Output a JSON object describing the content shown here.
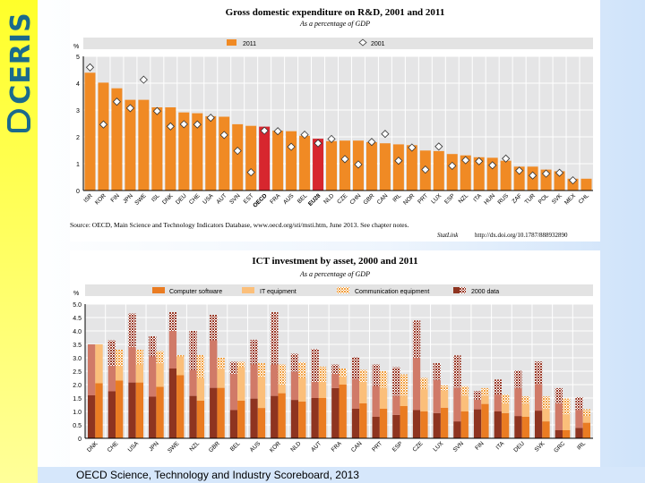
{
  "logo": {
    "text": "CERIS"
  },
  "footer": "OECD Science, Technology and Industry Scoreboard, 2013",
  "colors": {
    "bar_2011": "#f08a24",
    "bar_highlight": "#d7262e",
    "software_2011": "#ea7c22",
    "it_2011": "#fbbf7a",
    "comm_2011": "#f2a040",
    "software_2000": "#8e3420",
    "it_2000": "#d07a68",
    "comm_2000": "#9a3a28",
    "plot_bg": "#e5e5e6"
  },
  "chart_data": [
    {
      "type": "bar",
      "title": "Gross domestic expenditure on R&D, 2001 and 2011",
      "subtitle": "As a percentage of GDP",
      "ylabel": "%",
      "ylim": [
        0,
        5
      ],
      "yticks": [
        "0",
        "1",
        "2",
        "3",
        "4",
        "5"
      ],
      "grid": true,
      "legend": {
        "placement": "top",
        "entries": [
          "2011",
          "2001"
        ]
      },
      "categories": [
        "ISR",
        "KOR",
        "FIN",
        "JPN",
        "SWE",
        "ISL",
        "DNK",
        "DEU",
        "CHE",
        "USA",
        "AUT",
        "SVN",
        "EST",
        "OECD",
        "FRA",
        "AUS",
        "BEL",
        "EU28",
        "NLD",
        "CZE",
        "CHN",
        "GBR",
        "CAN",
        "IRL",
        "NOR",
        "PRT",
        "LUX",
        "ESP",
        "NZL",
        "ITA",
        "HUN",
        "RUS",
        "ZAF",
        "TUR",
        "POL",
        "SVK",
        "MEX",
        "CHL"
      ],
      "highlighted": [
        "OECD",
        "EU28"
      ],
      "series": [
        {
          "name": "2011",
          "style": "bar",
          "values": [
            4.39,
            4.02,
            3.81,
            3.38,
            3.38,
            3.1,
            3.1,
            2.91,
            2.88,
            2.77,
            2.75,
            2.47,
            2.41,
            2.38,
            2.23,
            2.21,
            2.04,
            1.93,
            1.84,
            1.86,
            1.86,
            1.8,
            1.76,
            1.72,
            1.69,
            1.49,
            1.47,
            1.36,
            1.31,
            1.24,
            1.22,
            1.11,
            0.89,
            0.89,
            0.78,
            0.72,
            0.44,
            0.44
          ]
        },
        {
          "name": "2001",
          "style": "diamond",
          "values": [
            4.59,
            2.46,
            3.31,
            3.07,
            4.13,
            2.96,
            2.39,
            2.47,
            2.46,
            2.71,
            2.07,
            1.48,
            0.68,
            2.23,
            2.21,
            1.63,
            2.08,
            1.76,
            1.92,
            1.17,
            0.97,
            1.81,
            2.11,
            1.11,
            1.6,
            0.78,
            1.64,
            0.92,
            1.13,
            1.09,
            0.94,
            1.19,
            0.74,
            0.56,
            0.63,
            0.66,
            0.38,
            null
          ]
        }
      ],
      "source": "Source: OECD, Main Science and Technology Indicators Database, www.oecd.org/sti/msti.htm, June 2013. See chapter notes.",
      "statlink": "StatLink",
      "statlink_url": "http://dx.doi.org/10.1787/888932890"
    },
    {
      "type": "bar",
      "title": "ICT investment by asset, 2000 and 2011",
      "subtitle": "As a percentage of GDP",
      "ylabel": "%",
      "ylim": [
        0,
        5
      ],
      "yticks": [
        "0",
        "0.5",
        "1.0",
        "1.5",
        "2.0",
        "2.5",
        "3.0",
        "3.5",
        "4.0",
        "4.5",
        "5.0"
      ],
      "grid": true,
      "stacked": true,
      "legend": {
        "placement": "top",
        "entries": [
          "Computer software",
          "IT equipment",
          "Communication equipment",
          "2000 data"
        ]
      },
      "categories": [
        "DNK",
        "CHE",
        "USA",
        "JPN",
        "SWE",
        "NZL",
        "GBR",
        "BEL",
        "AUS",
        "KOR",
        "NLD",
        "AUT",
        "FRA",
        "CAN",
        "PRT",
        "ESP",
        "CZE",
        "LUX",
        "SVN",
        "FIN",
        "ITA",
        "DEU",
        "SVK",
        "GRC",
        "IRL"
      ],
      "series_2011": [
        {
          "name": "Computer software",
          "values": [
            2.05,
            2.15,
            2.08,
            1.92,
            2.35,
            1.4,
            1.88,
            1.4,
            1.13,
            1.68,
            1.37,
            1.5,
            2.0,
            1.3,
            1.1,
            1.2,
            1.0,
            1.14,
            1.0,
            1.28,
            0.94,
            0.8,
            0.63,
            0.3,
            0.58
          ]
        },
        {
          "name": "IT equipment",
          "values": [
            1.45,
            0.55,
            0.67,
            0.88,
            0.7,
            0.85,
            0.72,
            1.25,
            1.17,
            0.32,
            0.88,
            0.6,
            0.3,
            0.8,
            0.77,
            0.38,
            0.83,
            0.64,
            0.59,
            0.31,
            0.36,
            0.48,
            0.48,
            0.59,
            0.25
          ]
        },
        {
          "name": "Communication equipment",
          "values": [
            0.0,
            0.6,
            0.55,
            0.45,
            0.05,
            0.85,
            0.4,
            0.2,
            0.5,
            0.75,
            0.58,
            0.57,
            0.3,
            0.45,
            0.63,
            0.8,
            0.42,
            0.19,
            0.35,
            0.28,
            0.33,
            0.28,
            0.45,
            0.59,
            0.25
          ]
        }
      ],
      "series_2000": [
        {
          "name": "Computer software",
          "values": [
            1.6,
            1.75,
            2.08,
            1.55,
            2.6,
            1.58,
            1.88,
            1.05,
            1.48,
            1.58,
            1.43,
            1.5,
            1.87,
            1.1,
            0.8,
            0.87,
            1.05,
            0.94,
            0.63,
            1.08,
            1.0,
            0.83,
            1.03,
            0.3,
            0.39
          ]
        },
        {
          "name": "IT equipment",
          "values": [
            1.9,
            0.95,
            1.32,
            1.5,
            1.4,
            0.97,
            1.77,
            1.35,
            1.27,
            1.17,
            1.05,
            0.6,
            0.53,
            1.12,
            1.15,
            0.71,
            1.95,
            1.23,
            1.26,
            0.36,
            0.63,
            1.04,
            0.99,
            1.01,
            0.67
          ]
        },
        {
          "name": "Communication equipment",
          "values": [
            0.0,
            0.95,
            1.25,
            0.75,
            0.7,
            1.45,
            0.95,
            0.45,
            0.92,
            1.95,
            0.67,
            1.23,
            0.35,
            0.8,
            0.8,
            1.07,
            1.39,
            0.63,
            1.2,
            0.32,
            0.56,
            0.65,
            0.84,
            0.56,
            0.47
          ]
        }
      ]
    }
  ]
}
